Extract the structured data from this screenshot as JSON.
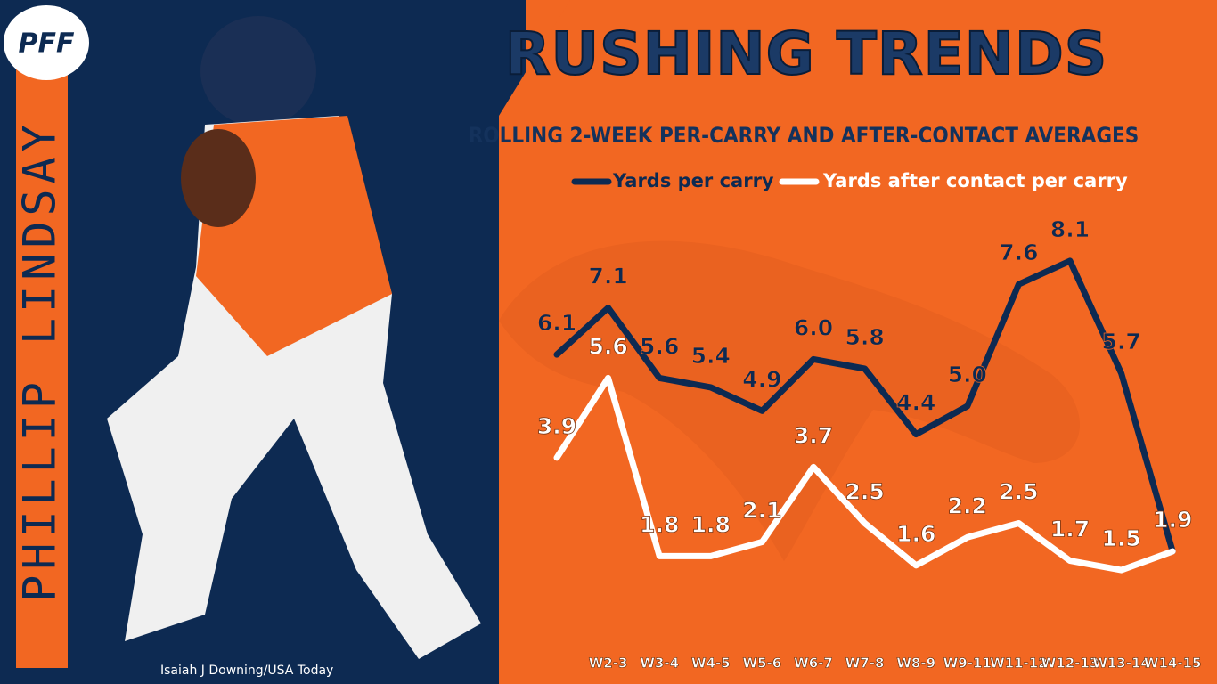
{
  "branding": {
    "logo": "PFF",
    "player": "PHILLIP LINDSAY",
    "credit": "Isaiah J Downing/USA Today"
  },
  "chart_data": {
    "type": "line",
    "title": "RUSHING TRENDS",
    "subtitle": "ROLLING 2-WEEK PER-CARRY AND AFTER-CONTACT AVERAGES",
    "categories": [
      null,
      "W2-3",
      "W3-4",
      "W4-5",
      "W5-6",
      "W6-7",
      "W7-8",
      "W8-9",
      "W9-11",
      "W11-12",
      "W12-13",
      "W13-14",
      "W14-15"
    ],
    "series": [
      {
        "name": "Yards per carry",
        "color": "#0d2a52",
        "values": [
          6.1,
          7.1,
          5.6,
          5.4,
          4.9,
          6.0,
          5.8,
          4.4,
          5.0,
          7.6,
          8.1,
          5.7,
          1.9
        ],
        "value_labels": [
          "6.1",
          "7.1",
          "5.6",
          "5.4",
          "4.9",
          "6.0",
          "5.8",
          "4.4",
          "5.0",
          "7.6",
          "8.1",
          "5.7",
          null
        ]
      },
      {
        "name": "Yards after contact per carry",
        "color": "#ffffff",
        "values": [
          3.9,
          5.6,
          1.8,
          1.8,
          2.1,
          3.7,
          2.5,
          1.6,
          2.2,
          2.5,
          1.7,
          1.5,
          1.9
        ],
        "value_labels": [
          "3.9",
          "5.6",
          "1.8",
          "1.8",
          "2.1",
          "3.7",
          "2.5",
          "1.6",
          "2.2",
          "2.5",
          "1.7",
          "1.5",
          "1.9"
        ]
      }
    ]
  }
}
